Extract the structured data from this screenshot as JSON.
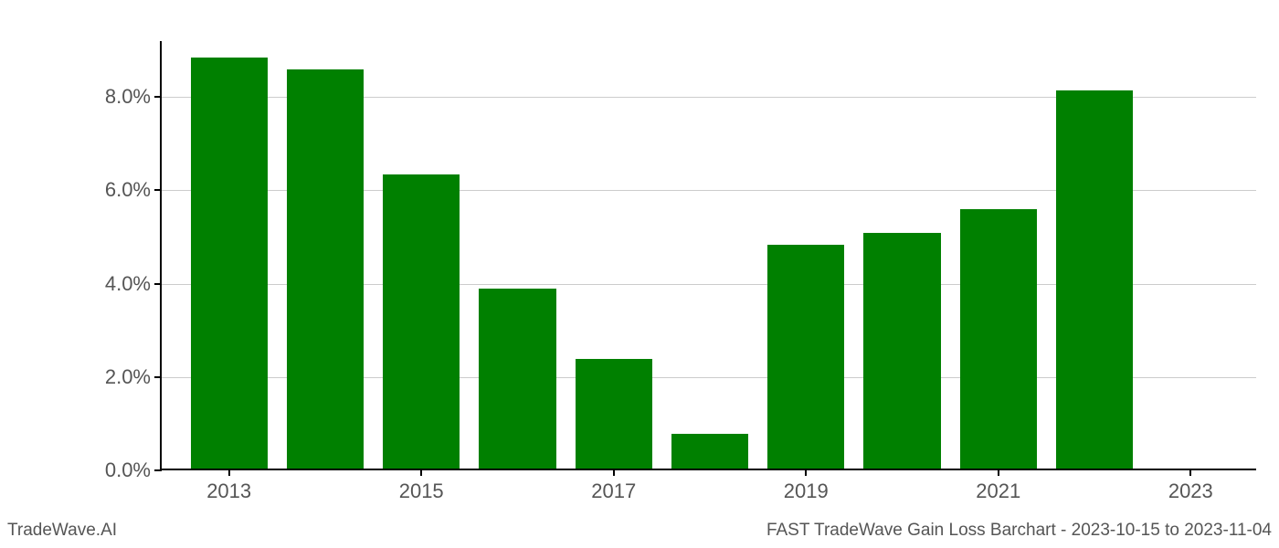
{
  "chart": {
    "type": "bar",
    "years": [
      2013,
      2014,
      2015,
      2016,
      2017,
      2018,
      2019,
      2020,
      2021,
      2022
    ],
    "values": [
      8.8,
      8.55,
      6.3,
      3.85,
      2.35,
      0.75,
      4.8,
      5.05,
      5.55,
      8.1
    ],
    "bar_color": "#008000",
    "background_color": "#ffffff",
    "grid_color": "#cccccc",
    "axis_color": "#000000",
    "text_color": "#555555",
    "y_ticks": [
      0.0,
      2.0,
      4.0,
      6.0,
      8.0
    ],
    "y_tick_labels": [
      "0.0%",
      "2.0%",
      "4.0%",
      "6.0%",
      "8.0%"
    ],
    "x_ticks": [
      2013,
      2015,
      2017,
      2019,
      2021,
      2023
    ],
    "x_tick_labels": [
      "2013",
      "2015",
      "2017",
      "2019",
      "2021",
      "2023"
    ],
    "ylim": [
      0,
      9.2
    ],
    "xlim": [
      2012.3,
      2023.7
    ],
    "bar_width": 0.8,
    "label_fontsize": 22
  },
  "footer": {
    "left": "TradeWave.AI",
    "right": "FAST TradeWave Gain Loss Barchart - 2023-10-15 to 2023-11-04"
  }
}
